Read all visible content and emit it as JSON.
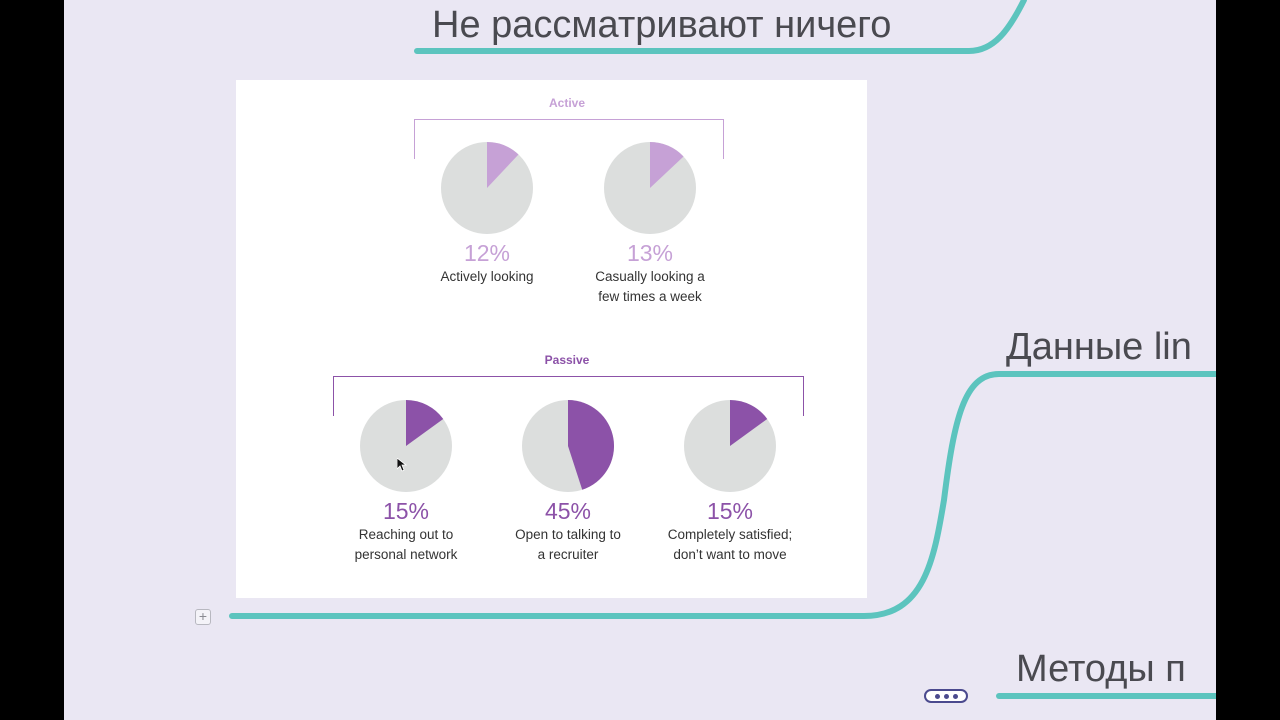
{
  "mindmap": {
    "topics": {
      "top": "Не рассматривают ничего",
      "right": "Данные lin",
      "bottom": "Методы п"
    },
    "branch_color": "#5cc4be",
    "background": "#eae7f3"
  },
  "infographic": {
    "active": {
      "label": "Active",
      "color": "#c6a1d6",
      "items": [
        {
          "percent": 12,
          "percent_label": "12%",
          "caption": "Actively looking"
        },
        {
          "percent": 13,
          "percent_label": "13%",
          "caption": "Casually looking a\nfew times a week"
        }
      ]
    },
    "passive": {
      "label": "Passive",
      "color": "#8c52a8",
      "items": [
        {
          "percent": 15,
          "percent_label": "15%",
          "caption": "Reaching out to\npersonal network"
        },
        {
          "percent": 45,
          "percent_label": "45%",
          "caption": "Open to talking to\na recruiter"
        },
        {
          "percent": 15,
          "percent_label": "15%",
          "caption": "Completely satisfied;\ndon’t want to move"
        }
      ]
    },
    "pie_background": "#dcdedd"
  },
  "icons": {
    "expand": "plus-box-icon",
    "more": "ellipsis-icon",
    "cursor": "mouse-pointer-icon"
  }
}
